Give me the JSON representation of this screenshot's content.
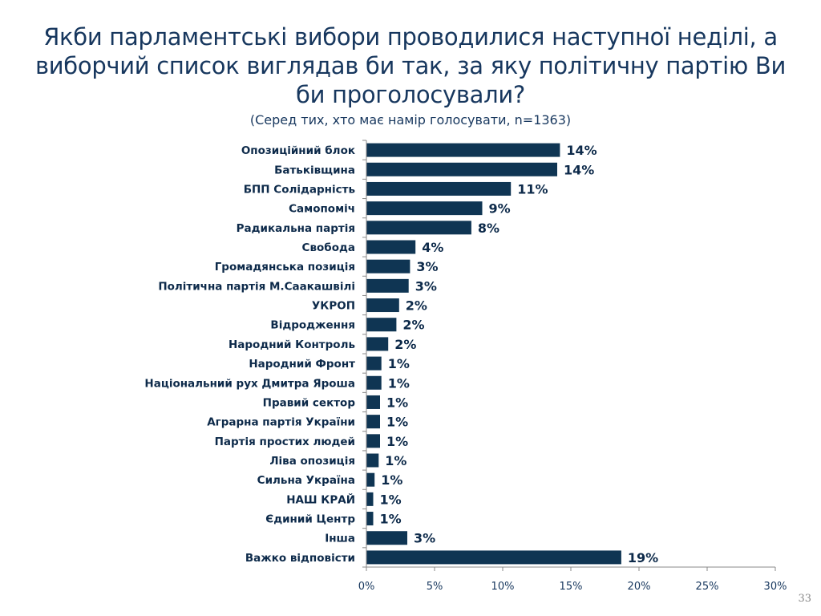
{
  "slide": {
    "title": "Якби парламентські вибори проводилися наступної неділі, а виборчий список виглядав би так, за яку політичну партію Ви би проголосували?",
    "subtitle": "(Серед тих, хто має намір голосувати, n=1363)",
    "page_number": "33"
  },
  "colors": {
    "bar": "#0f3553",
    "title": "#17375e",
    "axis": "#888888"
  },
  "chart_data": {
    "type": "bar",
    "orientation": "horizontal",
    "categories": [
      "Опозиційний блок",
      "Батьківщина",
      "БПП Солідарність",
      "Самопоміч",
      "Радикальна партія",
      "Свобода",
      "Громадянська позиція",
      "Політична партія М.Саакашвілі",
      "УКРОП",
      "Відродження",
      "Народний Контроль",
      "Народний Фронт",
      "Національний рух Дмитра Яроша",
      "Правий сектор",
      "Аграрна партія України",
      "Партія простих людей",
      "Ліва опозиція",
      "Сильна Україна",
      "НАШ КРАЙ",
      "Єдиний Центр",
      "Інша",
      "Важко відповісти"
    ],
    "values": [
      14.2,
      14.0,
      10.6,
      8.5,
      7.7,
      3.6,
      3.2,
      3.1,
      2.4,
      2.2,
      1.6,
      1.1,
      1.1,
      1.0,
      1.0,
      1.0,
      0.9,
      0.6,
      0.5,
      0.5,
      3.0,
      18.7
    ],
    "data_labels": [
      "14%",
      "14%",
      "11%",
      "9%",
      "8%",
      "4%",
      "3%",
      "3%",
      "2%",
      "2%",
      "2%",
      "1%",
      "1%",
      "1%",
      "1%",
      "1%",
      "1%",
      "1%",
      "1%",
      "1%",
      "3%",
      "19%"
    ],
    "xlim": [
      0,
      30
    ],
    "x_ticks": [
      "0%",
      "5%",
      "10%",
      "15%",
      "20%",
      "25%",
      "30%"
    ],
    "grid": false,
    "legend": "none"
  }
}
